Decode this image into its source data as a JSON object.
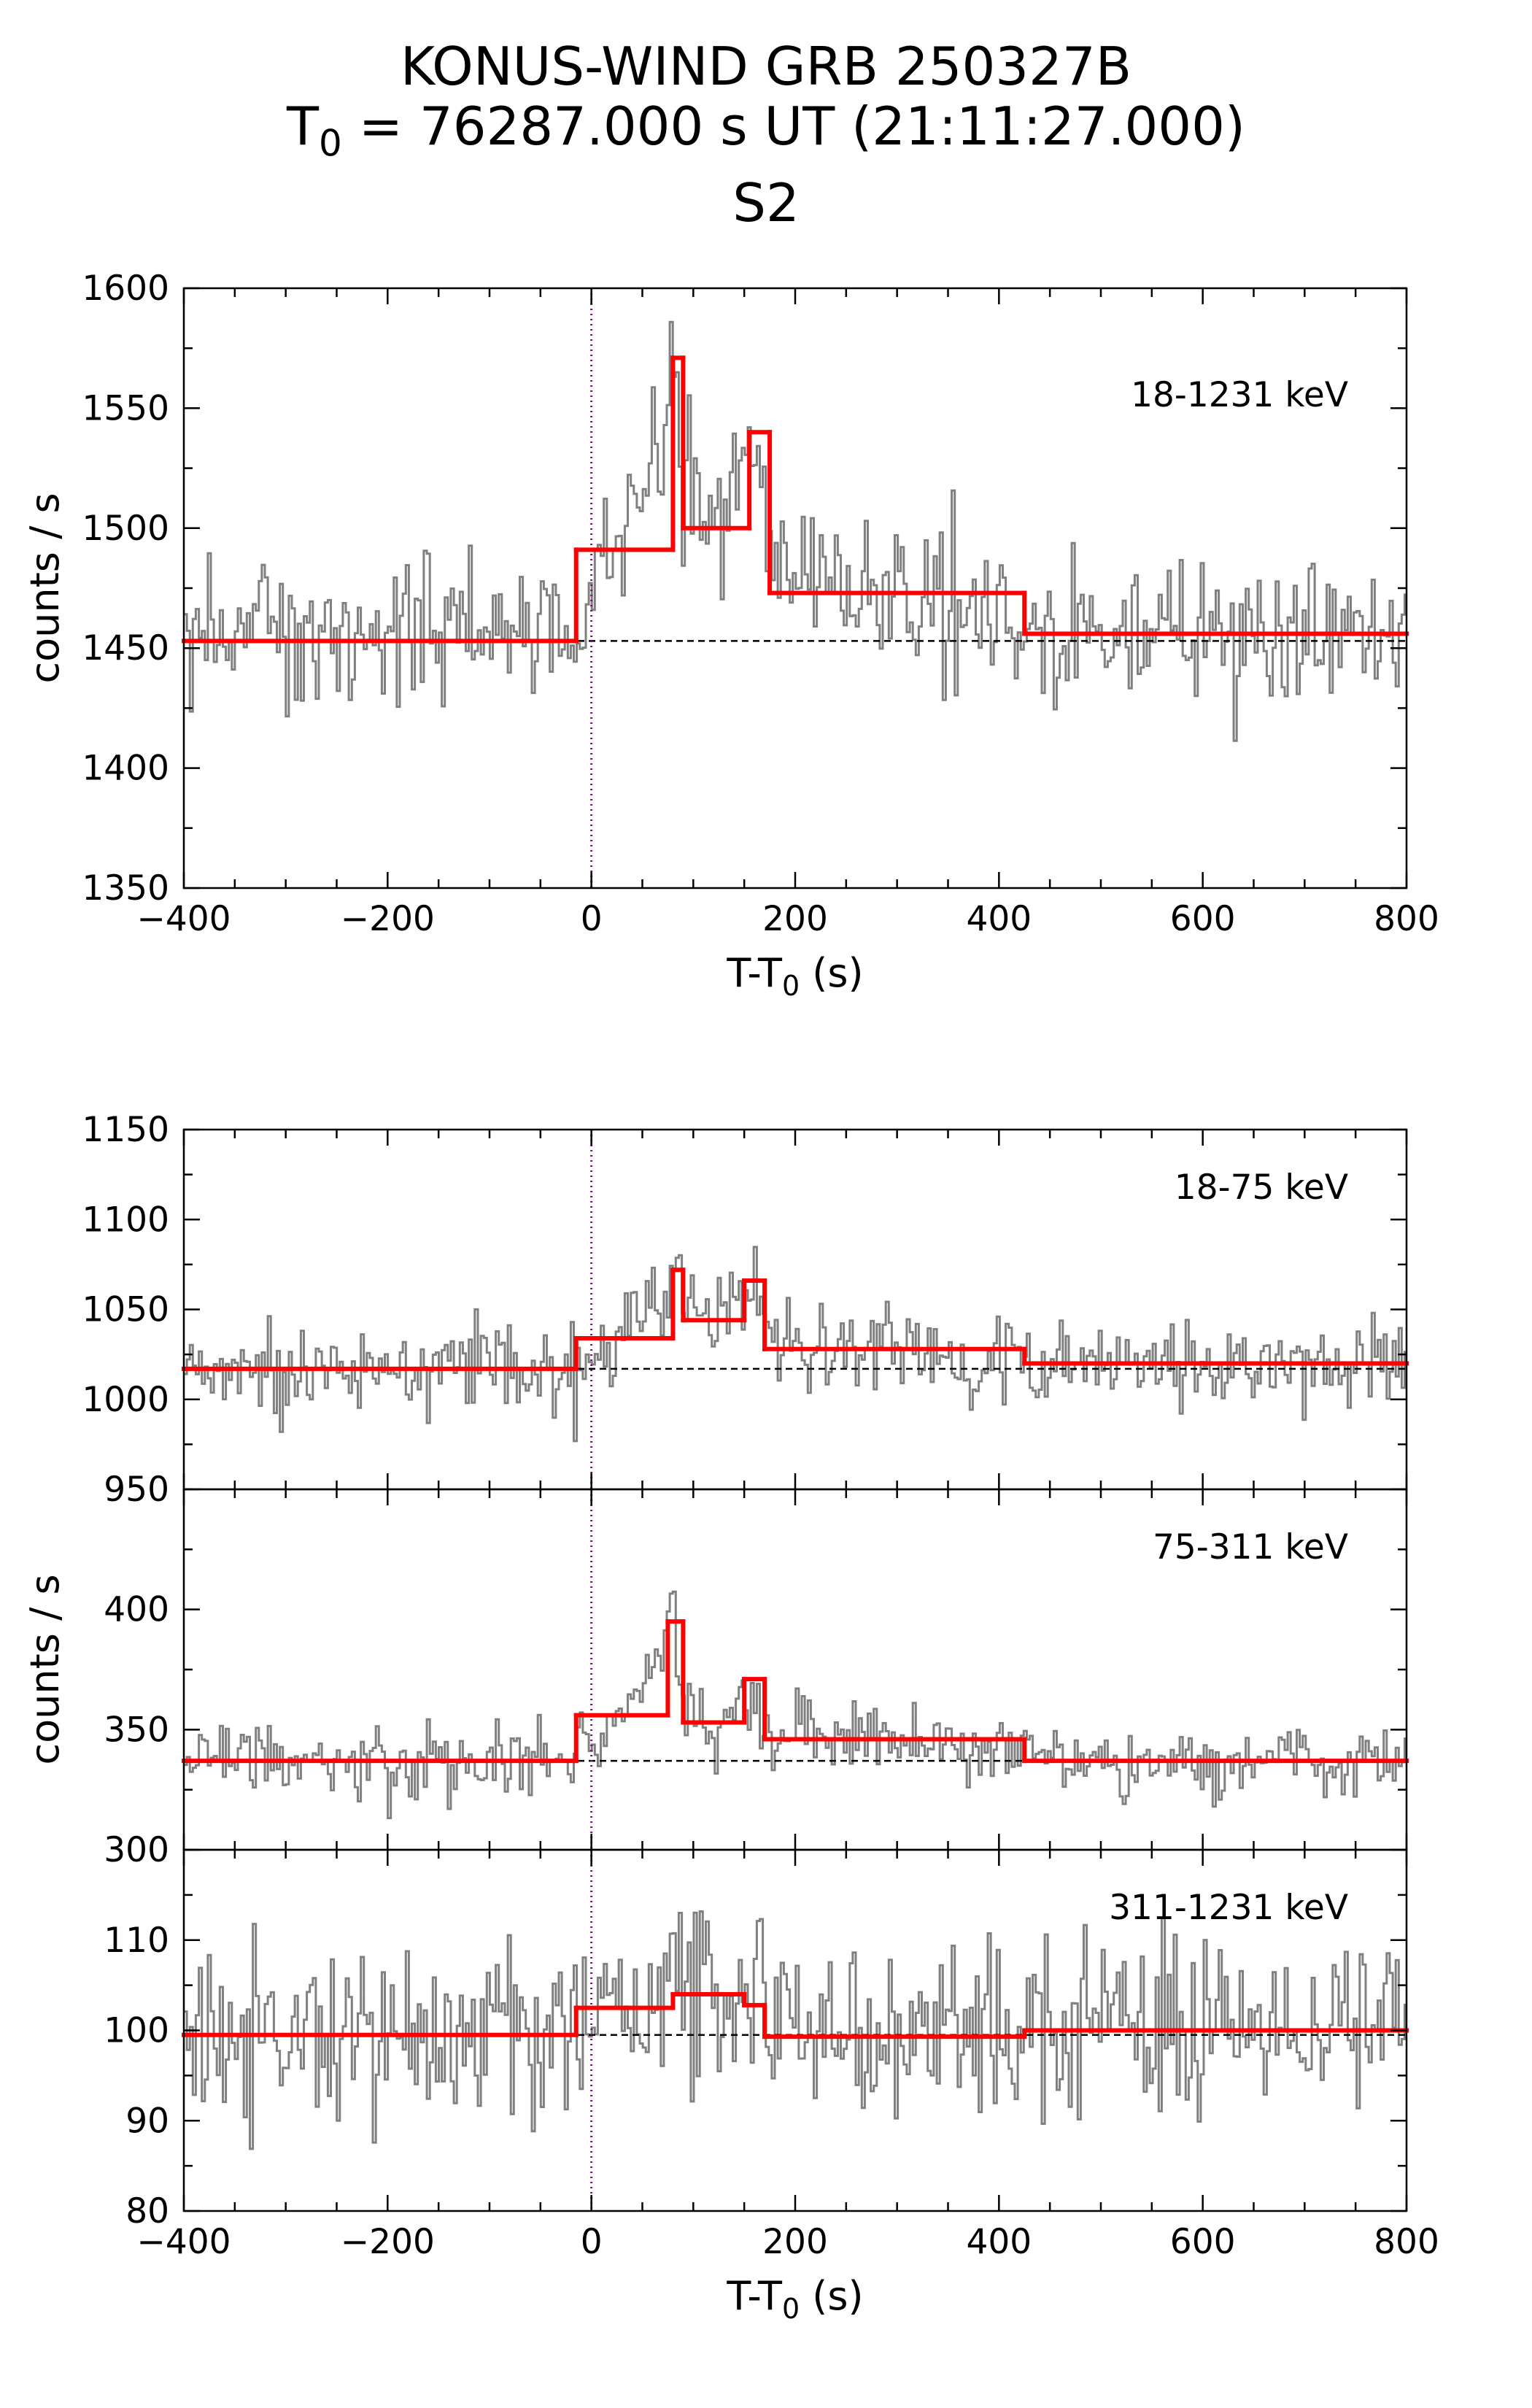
{
  "figure": {
    "title_line1": "KONUS-WIND GRB 250327B",
    "title_line2_pre": "T",
    "title_line2_sub": "0",
    "title_line2_post": " = 76287.000 s UT (21:11:27.000)",
    "title_line3": "S2"
  },
  "colors": {
    "lightcurve": "#808080",
    "blocks": "#ff0000",
    "trigger_line": "#8b008b",
    "background_line": "#000000"
  },
  "chart_data": [
    {
      "type": "line",
      "panel": "top",
      "energy_label": "18-1231 keV",
      "ylabel": "counts / s",
      "xlabel": "T-T0 (s)",
      "xlabel_pre": "T-T",
      "xlabel_sub": "0",
      "xlabel_post": " (s)",
      "xlim": [
        -400,
        800
      ],
      "ylim": [
        1350,
        1600
      ],
      "xticks": [
        -400,
        -200,
        0,
        200,
        400,
        600,
        800
      ],
      "xtick_labels": [
        "−400",
        "−200",
        "0",
        "200",
        "400",
        "600",
        "800"
      ],
      "yticks": [
        1350,
        1400,
        1450,
        1500,
        1550,
        1600
      ],
      "ytick_labels": [
        "1350",
        "1400",
        "1450",
        "1500",
        "1550",
        "1600"
      ],
      "background": 1453,
      "trigger_time": 0,
      "bayesian_blocks": {
        "edges": [
          -400,
          -15,
          80,
          90,
          155,
          175,
          425,
          800
        ],
        "values": [
          1453,
          1491,
          1571,
          1500,
          1540,
          1473,
          1456
        ]
      },
      "lightcurve": {
        "bin_width": 2.944,
        "anchor_t": [
          -400,
          -300,
          -200,
          -100,
          -20,
          0,
          20,
          40,
          60,
          75,
          82,
          90,
          110,
          130,
          150,
          162,
          175,
          200,
          250,
          300,
          350,
          420,
          500,
          600,
          700,
          800
        ],
        "anchor_y": [
          1453,
          1453,
          1453,
          1453,
          1455,
          1478,
          1492,
          1505,
          1525,
          1560,
          1575,
          1520,
          1505,
          1500,
          1518,
          1535,
          1490,
          1480,
          1475,
          1473,
          1470,
          1460,
          1456,
          1456,
          1456,
          1456
        ],
        "noise_sigma": 15,
        "seed": 1
      }
    },
    {
      "type": "line",
      "panel": "bottom-1",
      "energy_label": "18-75 keV",
      "xlim": [
        -400,
        800
      ],
      "ylim": [
        950,
        1150
      ],
      "yticks": [
        950,
        1000,
        1050,
        1100,
        1150
      ],
      "ytick_labels": [
        "950",
        "1000",
        "1050",
        "1100",
        "1150"
      ],
      "background": 1017,
      "trigger_time": 0,
      "bayesian_blocks": {
        "edges": [
          -400,
          -15,
          80,
          90,
          150,
          170,
          425,
          800
        ],
        "values": [
          1017,
          1034,
          1072,
          1044,
          1066,
          1028,
          1020
        ]
      },
      "lightcurve": {
        "bin_width": 2.944,
        "anchor_t": [
          -400,
          -300,
          -200,
          -100,
          -20,
          0,
          20,
          40,
          60,
          75,
          82,
          90,
          110,
          130,
          150,
          162,
          175,
          200,
          250,
          300,
          350,
          420,
          500,
          600,
          700,
          800
        ],
        "anchor_y": [
          1017,
          1017,
          1017,
          1017,
          1018,
          1028,
          1034,
          1040,
          1052,
          1066,
          1075,
          1048,
          1044,
          1043,
          1056,
          1063,
          1038,
          1033,
          1030,
          1028,
          1027,
          1022,
          1020,
          1020,
          1020,
          1020
        ],
        "noise_sigma": 12,
        "seed": 2
      }
    },
    {
      "type": "line",
      "panel": "bottom-2",
      "energy_label": "75-311 keV",
      "ylabel": "counts / s",
      "xlim": [
        -400,
        800
      ],
      "ylim": [
        300,
        450
      ],
      "yticks": [
        300,
        350,
        400
      ],
      "ytick_labels": [
        "300",
        "350",
        "400"
      ],
      "background": 337,
      "trigger_time": 0,
      "bayesian_blocks": {
        "edges": [
          -400,
          -15,
          75,
          90,
          150,
          170,
          425,
          800
        ],
        "values": [
          337,
          356,
          395,
          353,
          371,
          346,
          337
        ]
      },
      "lightcurve": {
        "bin_width": 2.944,
        "anchor_t": [
          -400,
          -300,
          -200,
          -100,
          -20,
          0,
          20,
          40,
          60,
          75,
          82,
          90,
          110,
          130,
          150,
          162,
          175,
          200,
          250,
          300,
          350,
          420,
          500,
          600,
          700,
          800
        ],
        "anchor_y": [
          337,
          337,
          337,
          337,
          338,
          348,
          355,
          362,
          375,
          398,
          402,
          362,
          355,
          352,
          362,
          368,
          350,
          348,
          347,
          346,
          345,
          340,
          337,
          337,
          337,
          337
        ],
        "noise_sigma": 8,
        "seed": 3
      }
    },
    {
      "type": "line",
      "panel": "bottom-3",
      "energy_label": "311-1231 keV",
      "xlabel": "T-T0 (s)",
      "xlabel_pre": "T-T",
      "xlabel_sub": "0",
      "xlabel_post": " (s)",
      "xlim": [
        -400,
        800
      ],
      "ylim": [
        80,
        120
      ],
      "xticks": [
        -400,
        -200,
        0,
        200,
        400,
        600,
        800
      ],
      "xtick_labels": [
        "−400",
        "−200",
        "0",
        "200",
        "400",
        "600",
        "800"
      ],
      "yticks": [
        80,
        90,
        100,
        110
      ],
      "ytick_labels": [
        "80",
        "90",
        "100",
        "110"
      ],
      "background": 99.5,
      "trigger_time": 0,
      "bayesian_blocks": {
        "edges": [
          -400,
          -15,
          80,
          150,
          170,
          425,
          800
        ],
        "values": [
          99.5,
          102.5,
          104,
          102.8,
          99.3,
          100
        ]
      },
      "lightcurve": {
        "bin_width": 2.944,
        "anchor_t": [
          -400,
          -200,
          -15,
          0,
          80,
          150,
          170,
          300,
          425,
          600,
          800
        ],
        "anchor_y": [
          99.5,
          99.5,
          100.5,
          102.5,
          104,
          104,
          102.5,
          99.5,
          99.5,
          100,
          100
        ],
        "noise_sigma": 5,
        "seed": 4
      }
    }
  ]
}
